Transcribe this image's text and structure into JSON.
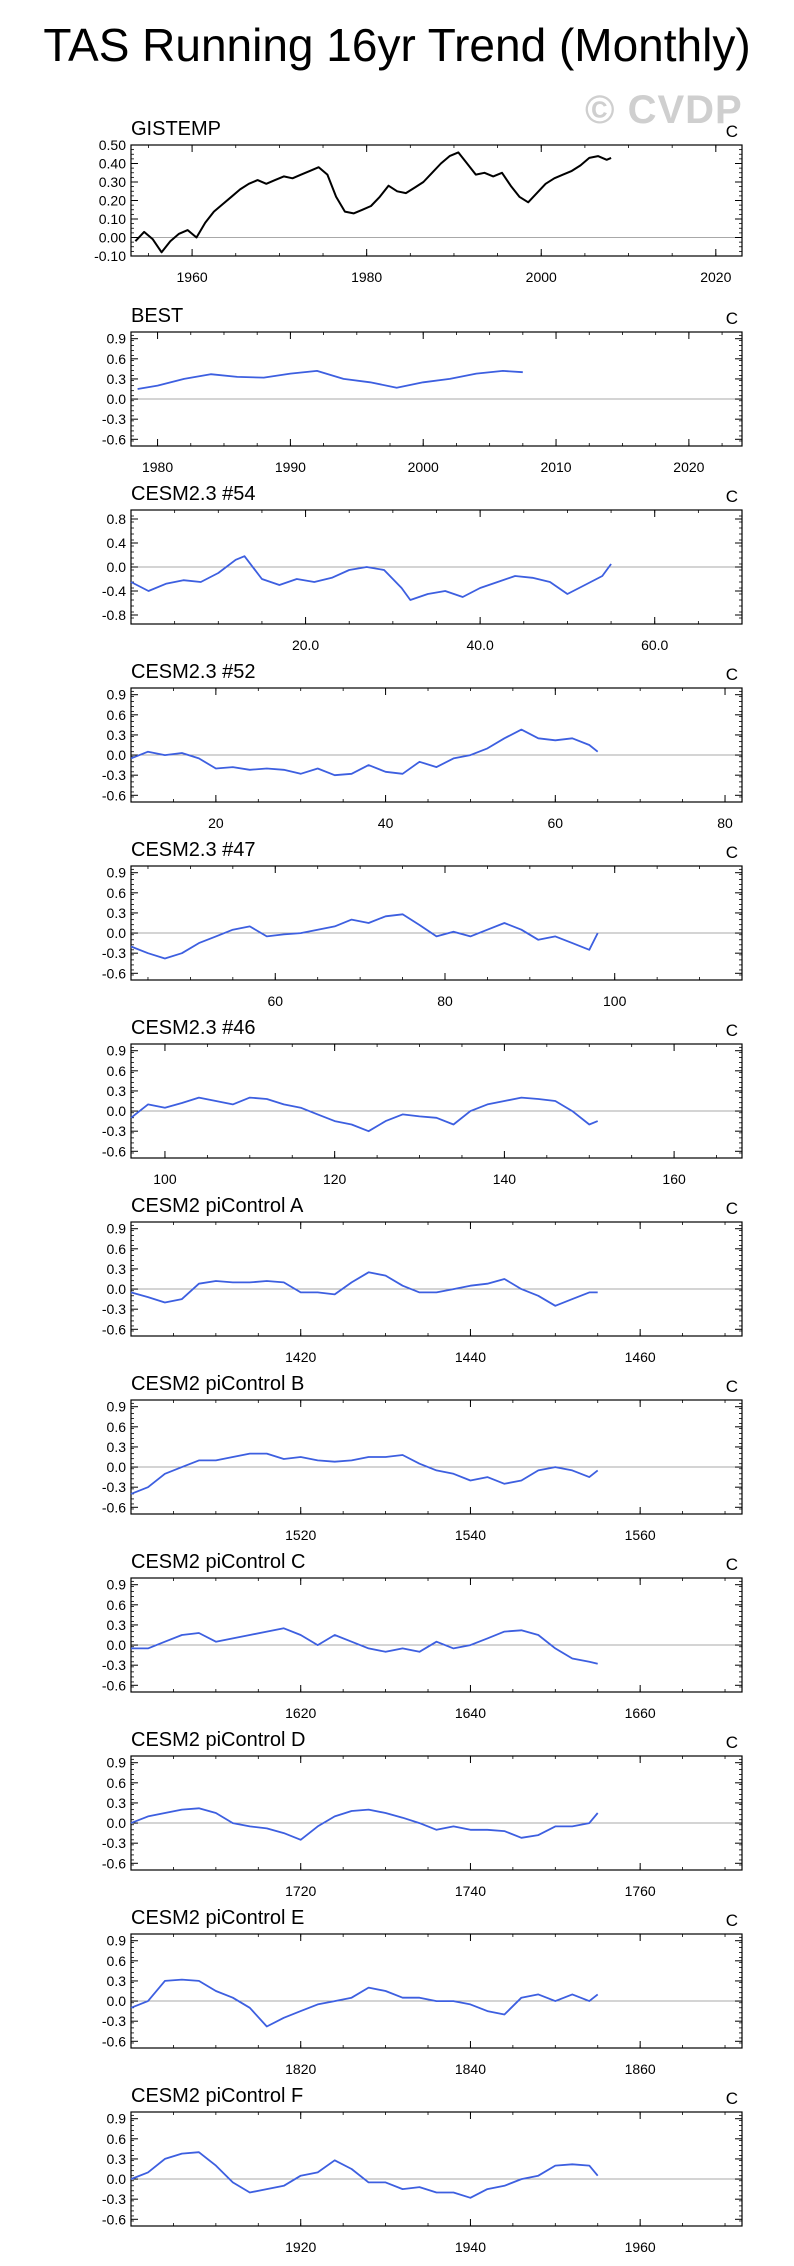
{
  "page": {
    "title": "TAS Running 16yr Trend (Monthly)",
    "watermark": "© CVDP"
  },
  "chart_data": [
    {
      "type": "line",
      "title": "GISTEMP",
      "units": "C",
      "color": "#000000",
      "xlim": [
        1953,
        2023
      ],
      "xticks": [
        1960,
        1980,
        2000,
        2020
      ],
      "xticklabels": [
        "1960",
        "1980",
        "2000",
        "2020"
      ],
      "ylim": [
        -0.1,
        0.5
      ],
      "yticks": [
        -0.1,
        0.0,
        0.1,
        0.2,
        0.3,
        0.4,
        0.5
      ],
      "yticklabels": [
        "-0.10",
        "0.00",
        "0.10",
        "0.20",
        "0.30",
        "0.40",
        "0.50"
      ],
      "zero_line": true,
      "x": [
        1953.5,
        1954.5,
        1955.5,
        1956.5,
        1957.5,
        1958.5,
        1959.5,
        1960.5,
        1961.5,
        1962.5,
        1963.5,
        1964.5,
        1965.5,
        1966.5,
        1967.5,
        1968.5,
        1969.5,
        1970.5,
        1971.5,
        1972.5,
        1973.5,
        1974.5,
        1975.5,
        1976.5,
        1977.5,
        1978.5,
        1979.5,
        1980.5,
        1981.5,
        1982.5,
        1983.5,
        1984.5,
        1985.5,
        1986.5,
        1987.5,
        1988.5,
        1989.5,
        1990.5,
        1991.5,
        1992.5,
        1993.5,
        1994.5,
        1995.5,
        1996.5,
        1997.5,
        1998.5,
        1999.5,
        2000.5,
        2001.5,
        2002.5,
        2003.5,
        2004.5,
        2005.5,
        2006.5,
        2007.5,
        2008.0
      ],
      "y": [
        -0.02,
        0.03,
        -0.01,
        -0.08,
        -0.02,
        0.02,
        0.04,
        0.0,
        0.08,
        0.14,
        0.18,
        0.22,
        0.26,
        0.29,
        0.31,
        0.29,
        0.31,
        0.33,
        0.32,
        0.34,
        0.36,
        0.38,
        0.34,
        0.22,
        0.14,
        0.13,
        0.15,
        0.17,
        0.22,
        0.28,
        0.25,
        0.24,
        0.27,
        0.3,
        0.35,
        0.4,
        0.44,
        0.46,
        0.4,
        0.34,
        0.35,
        0.33,
        0.35,
        0.28,
        0.22,
        0.19,
        0.24,
        0.29,
        0.32,
        0.34,
        0.36,
        0.39,
        0.43,
        0.44,
        0.42,
        0.43
      ]
    },
    {
      "type": "line",
      "title": "BEST",
      "units": "C",
      "color": "#3d5fe0",
      "xlim": [
        1978,
        2024
      ],
      "xticks": [
        1980,
        1990,
        2000,
        2010,
        2020
      ],
      "xticklabels": [
        "1980",
        "1990",
        "2000",
        "2010",
        "2020"
      ],
      "ylim": [
        -0.7,
        1.0
      ],
      "yticks": [
        -0.6,
        -0.3,
        0.0,
        0.3,
        0.6,
        0.9
      ],
      "yticklabels": [
        "-0.6",
        "-0.3",
        "0.0",
        "0.3",
        "0.6",
        "0.9"
      ],
      "zero_line": true,
      "x": [
        1978.5,
        1980,
        1982,
        1984,
        1986,
        1988,
        1990,
        1992,
        1994,
        1996,
        1998,
        2000,
        2002,
        2004,
        2006,
        2007.5
      ],
      "y": [
        0.15,
        0.2,
        0.3,
        0.37,
        0.33,
        0.32,
        0.38,
        0.42,
        0.3,
        0.25,
        0.17,
        0.25,
        0.3,
        0.38,
        0.42,
        0.4
      ]
    },
    {
      "type": "line",
      "title": "CESM2.3 #54",
      "units": "C",
      "color": "#3d5fe0",
      "xlim": [
        0,
        70
      ],
      "xticks": [
        20,
        40,
        60
      ],
      "xticklabels": [
        "20.0",
        "40.0",
        "60.0"
      ],
      "ylim": [
        -0.95,
        0.95
      ],
      "yticks": [
        -0.8,
        -0.4,
        0.0,
        0.4,
        0.8
      ],
      "yticklabels": [
        "-0.8",
        "-0.4",
        "0.0",
        "0.4",
        "0.8"
      ],
      "zero_line": true,
      "x": [
        0,
        2,
        4,
        6,
        8,
        10,
        12,
        13,
        15,
        17,
        19,
        21,
        23,
        25,
        27,
        29,
        31,
        32,
        34,
        36,
        38,
        40,
        42,
        44,
        46,
        48,
        50,
        52,
        54,
        55
      ],
      "y": [
        -0.25,
        -0.4,
        -0.28,
        -0.22,
        -0.25,
        -0.1,
        0.12,
        0.18,
        -0.2,
        -0.3,
        -0.2,
        -0.25,
        -0.18,
        -0.05,
        0.0,
        -0.05,
        -0.35,
        -0.55,
        -0.45,
        -0.4,
        -0.5,
        -0.35,
        -0.25,
        -0.15,
        -0.18,
        -0.25,
        -0.45,
        -0.3,
        -0.15,
        0.05
      ]
    },
    {
      "type": "line",
      "title": "CESM2.3 #52",
      "units": "C",
      "color": "#3d5fe0",
      "xlim": [
        10,
        82
      ],
      "xticks": [
        20,
        40,
        60,
        80
      ],
      "xticklabels": [
        "20",
        "40",
        "60",
        "80"
      ],
      "ylim": [
        -0.7,
        1.0
      ],
      "yticks": [
        -0.6,
        -0.3,
        0.0,
        0.3,
        0.6,
        0.9
      ],
      "yticklabels": [
        "-0.6",
        "-0.3",
        "0.0",
        "0.3",
        "0.6",
        "0.9"
      ],
      "zero_line": true,
      "x": [
        10,
        12,
        14,
        16,
        18,
        20,
        22,
        24,
        26,
        28,
        30,
        32,
        34,
        36,
        38,
        40,
        42,
        44,
        46,
        48,
        50,
        52,
        54,
        56,
        58,
        60,
        62,
        64,
        65
      ],
      "y": [
        -0.05,
        0.05,
        0.0,
        0.03,
        -0.05,
        -0.2,
        -0.18,
        -0.22,
        -0.2,
        -0.22,
        -0.28,
        -0.2,
        -0.3,
        -0.28,
        -0.15,
        -0.25,
        -0.28,
        -0.1,
        -0.18,
        -0.05,
        0.0,
        0.1,
        0.25,
        0.38,
        0.25,
        0.22,
        0.25,
        0.15,
        0.05
      ]
    },
    {
      "type": "line",
      "title": "CESM2.3 #47",
      "units": "C",
      "color": "#3d5fe0",
      "xlim": [
        43,
        115
      ],
      "xticks": [
        60,
        80,
        100
      ],
      "xticklabels": [
        "60",
        "80",
        "100"
      ],
      "ylim": [
        -0.7,
        1.0
      ],
      "yticks": [
        -0.6,
        -0.3,
        0.0,
        0.3,
        0.6,
        0.9
      ],
      "yticklabels": [
        "-0.6",
        "-0.3",
        "0.0",
        "0.3",
        "0.6",
        "0.9"
      ],
      "zero_line": true,
      "x": [
        43,
        45,
        47,
        49,
        51,
        53,
        55,
        57,
        59,
        61,
        63,
        65,
        67,
        69,
        71,
        73,
        75,
        77,
        79,
        81,
        83,
        85,
        87,
        89,
        91,
        93,
        95,
        97,
        98
      ],
      "y": [
        -0.2,
        -0.3,
        -0.38,
        -0.3,
        -0.15,
        -0.05,
        0.05,
        0.1,
        -0.05,
        -0.02,
        0.0,
        0.05,
        0.1,
        0.2,
        0.15,
        0.25,
        0.28,
        0.12,
        -0.05,
        0.02,
        -0.05,
        0.05,
        0.15,
        0.05,
        -0.1,
        -0.05,
        -0.15,
        -0.25,
        0.0
      ]
    },
    {
      "type": "line",
      "title": "CESM2.3 #46",
      "units": "C",
      "color": "#3d5fe0",
      "xlim": [
        96,
        168
      ],
      "xticks": [
        100,
        120,
        140,
        160
      ],
      "xticklabels": [
        "100",
        "120",
        "140",
        "160"
      ],
      "ylim": [
        -0.7,
        1.0
      ],
      "yticks": [
        -0.6,
        -0.3,
        0.0,
        0.3,
        0.6,
        0.9
      ],
      "yticklabels": [
        "-0.6",
        "-0.3",
        "0.0",
        "0.3",
        "0.6",
        "0.9"
      ],
      "zero_line": true,
      "x": [
        96,
        98,
        100,
        102,
        104,
        106,
        108,
        110,
        112,
        114,
        116,
        118,
        120,
        122,
        124,
        126,
        128,
        130,
        132,
        134,
        136,
        138,
        140,
        142,
        144,
        146,
        148,
        150,
        151
      ],
      "y": [
        -0.1,
        0.1,
        0.05,
        0.12,
        0.2,
        0.15,
        0.1,
        0.2,
        0.18,
        0.1,
        0.05,
        -0.05,
        -0.15,
        -0.2,
        -0.3,
        -0.15,
        -0.05,
        -0.08,
        -0.1,
        -0.2,
        0.0,
        0.1,
        0.15,
        0.2,
        0.18,
        0.15,
        0.0,
        -0.2,
        -0.15
      ]
    },
    {
      "type": "line",
      "title": "CESM2 piControl A",
      "units": "C",
      "color": "#3d5fe0",
      "xlim": [
        1400,
        1472
      ],
      "xticks": [
        1420,
        1440,
        1460
      ],
      "xticklabels": [
        "1420",
        "1440",
        "1460"
      ],
      "ylim": [
        -0.7,
        1.0
      ],
      "yticks": [
        -0.6,
        -0.3,
        0.0,
        0.3,
        0.6,
        0.9
      ],
      "yticklabels": [
        "-0.6",
        "-0.3",
        "0.0",
        "0.3",
        "0.6",
        "0.9"
      ],
      "zero_line": true,
      "x": [
        1400,
        1402,
        1404,
        1406,
        1408,
        1410,
        1412,
        1414,
        1416,
        1418,
        1420,
        1422,
        1424,
        1426,
        1428,
        1430,
        1432,
        1434,
        1436,
        1438,
        1440,
        1442,
        1444,
        1446,
        1448,
        1450,
        1452,
        1454,
        1455
      ],
      "y": [
        -0.05,
        -0.12,
        -0.2,
        -0.15,
        0.08,
        0.12,
        0.1,
        0.1,
        0.12,
        0.1,
        -0.05,
        -0.05,
        -0.08,
        0.1,
        0.25,
        0.2,
        0.05,
        -0.05,
        -0.05,
        0.0,
        0.05,
        0.08,
        0.15,
        0.0,
        -0.1,
        -0.25,
        -0.15,
        -0.05,
        -0.05
      ]
    },
    {
      "type": "line",
      "title": "CESM2 piControl B",
      "units": "C",
      "color": "#3d5fe0",
      "xlim": [
        1500,
        1572
      ],
      "xticks": [
        1520,
        1540,
        1560
      ],
      "xticklabels": [
        "1520",
        "1540",
        "1560"
      ],
      "ylim": [
        -0.7,
        1.0
      ],
      "yticks": [
        -0.6,
        -0.3,
        0.0,
        0.3,
        0.6,
        0.9
      ],
      "yticklabels": [
        "-0.6",
        "-0.3",
        "0.0",
        "0.3",
        "0.6",
        "0.9"
      ],
      "zero_line": true,
      "x": [
        1500,
        1502,
        1504,
        1506,
        1508,
        1510,
        1512,
        1514,
        1516,
        1518,
        1520,
        1522,
        1524,
        1526,
        1528,
        1530,
        1532,
        1534,
        1536,
        1538,
        1540,
        1542,
        1544,
        1546,
        1548,
        1550,
        1552,
        1554,
        1555
      ],
      "y": [
        -0.4,
        -0.3,
        -0.1,
        0.0,
        0.1,
        0.1,
        0.15,
        0.2,
        0.2,
        0.12,
        0.15,
        0.1,
        0.08,
        0.1,
        0.15,
        0.15,
        0.18,
        0.05,
        -0.05,
        -0.1,
        -0.2,
        -0.15,
        -0.25,
        -0.2,
        -0.05,
        0.0,
        -0.05,
        -0.15,
        -0.05
      ]
    },
    {
      "type": "line",
      "title": "CESM2 piControl C",
      "units": "C",
      "color": "#3d5fe0",
      "xlim": [
        1600,
        1672
      ],
      "xticks": [
        1620,
        1640,
        1660
      ],
      "xticklabels": [
        "1620",
        "1640",
        "1660"
      ],
      "ylim": [
        -0.7,
        1.0
      ],
      "yticks": [
        -0.6,
        -0.3,
        0.0,
        0.3,
        0.6,
        0.9
      ],
      "yticklabels": [
        "-0.6",
        "-0.3",
        "0.0",
        "0.3",
        "0.6",
        "0.9"
      ],
      "zero_line": true,
      "x": [
        1600,
        1602,
        1604,
        1606,
        1608,
        1610,
        1612,
        1614,
        1616,
        1618,
        1620,
        1622,
        1624,
        1626,
        1628,
        1630,
        1632,
        1634,
        1636,
        1638,
        1640,
        1642,
        1644,
        1646,
        1648,
        1650,
        1652,
        1654,
        1655
      ],
      "y": [
        -0.05,
        -0.05,
        0.05,
        0.15,
        0.18,
        0.05,
        0.1,
        0.15,
        0.2,
        0.25,
        0.15,
        0.0,
        0.15,
        0.05,
        -0.05,
        -0.1,
        -0.05,
        -0.1,
        0.05,
        -0.05,
        0.0,
        0.1,
        0.2,
        0.22,
        0.15,
        -0.05,
        -0.2,
        -0.25,
        -0.28
      ]
    },
    {
      "type": "line",
      "title": "CESM2 piControl D",
      "units": "C",
      "color": "#3d5fe0",
      "xlim": [
        1700,
        1772
      ],
      "xticks": [
        1720,
        1740,
        1760
      ],
      "xticklabels": [
        "1720",
        "1740",
        "1760"
      ],
      "ylim": [
        -0.7,
        1.0
      ],
      "yticks": [
        -0.6,
        -0.3,
        0.0,
        0.3,
        0.6,
        0.9
      ],
      "yticklabels": [
        "-0.6",
        "-0.3",
        "0.0",
        "0.3",
        "0.6",
        "0.9"
      ],
      "zero_line": true,
      "x": [
        1700,
        1702,
        1704,
        1706,
        1708,
        1710,
        1712,
        1714,
        1716,
        1718,
        1720,
        1722,
        1724,
        1726,
        1728,
        1730,
        1732,
        1734,
        1736,
        1738,
        1740,
        1742,
        1744,
        1746,
        1748,
        1750,
        1752,
        1754,
        1755
      ],
      "y": [
        0.0,
        0.1,
        0.15,
        0.2,
        0.22,
        0.15,
        0.0,
        -0.05,
        -0.08,
        -0.15,
        -0.25,
        -0.05,
        0.1,
        0.18,
        0.2,
        0.15,
        0.08,
        0.0,
        -0.1,
        -0.05,
        -0.1,
        -0.1,
        -0.12,
        -0.22,
        -0.18,
        -0.05,
        -0.05,
        0.0,
        0.15
      ]
    },
    {
      "type": "line",
      "title": "CESM2 piControl E",
      "units": "C",
      "color": "#3d5fe0",
      "xlim": [
        1800,
        1872
      ],
      "xticks": [
        1820,
        1840,
        1860
      ],
      "xticklabels": [
        "1820",
        "1840",
        "1860"
      ],
      "ylim": [
        -0.7,
        1.0
      ],
      "yticks": [
        -0.6,
        -0.3,
        0.0,
        0.3,
        0.6,
        0.9
      ],
      "yticklabels": [
        "-0.6",
        "-0.3",
        "0.0",
        "0.3",
        "0.6",
        "0.9"
      ],
      "zero_line": true,
      "x": [
        1800,
        1802,
        1804,
        1806,
        1808,
        1810,
        1812,
        1814,
        1816,
        1818,
        1820,
        1822,
        1824,
        1826,
        1828,
        1830,
        1832,
        1834,
        1836,
        1838,
        1840,
        1842,
        1844,
        1846,
        1848,
        1850,
        1852,
        1854,
        1855
      ],
      "y": [
        -0.1,
        0.0,
        0.3,
        0.32,
        0.3,
        0.15,
        0.05,
        -0.1,
        -0.38,
        -0.25,
        -0.15,
        -0.05,
        0.0,
        0.05,
        0.2,
        0.15,
        0.05,
        0.05,
        0.0,
        0.0,
        -0.05,
        -0.15,
        -0.2,
        0.05,
        0.1,
        0.0,
        0.1,
        0.0,
        0.1
      ]
    },
    {
      "type": "line",
      "title": "CESM2 piControl F",
      "units": "C",
      "color": "#3d5fe0",
      "xlim": [
        1900,
        1972
      ],
      "xticks": [
        1920,
        1940,
        1960
      ],
      "xticklabels": [
        "1920",
        "1940",
        "1960"
      ],
      "ylim": [
        -0.7,
        1.0
      ],
      "yticks": [
        -0.6,
        -0.3,
        0.0,
        0.3,
        0.6,
        0.9
      ],
      "yticklabels": [
        "-0.6",
        "-0.3",
        "0.0",
        "0.3",
        "0.6",
        "0.9"
      ],
      "zero_line": true,
      "x": [
        1900,
        1902,
        1904,
        1906,
        1908,
        1910,
        1912,
        1914,
        1916,
        1918,
        1920,
        1922,
        1924,
        1926,
        1928,
        1930,
        1932,
        1934,
        1936,
        1938,
        1940,
        1942,
        1944,
        1946,
        1948,
        1950,
        1952,
        1954,
        1955
      ],
      "y": [
        0.0,
        0.1,
        0.3,
        0.38,
        0.4,
        0.2,
        -0.05,
        -0.2,
        -0.15,
        -0.1,
        0.05,
        0.1,
        0.28,
        0.15,
        -0.05,
        -0.05,
        -0.15,
        -0.12,
        -0.2,
        -0.2,
        -0.28,
        -0.15,
        -0.1,
        0.0,
        0.05,
        0.2,
        0.22,
        0.2,
        0.05
      ]
    }
  ]
}
